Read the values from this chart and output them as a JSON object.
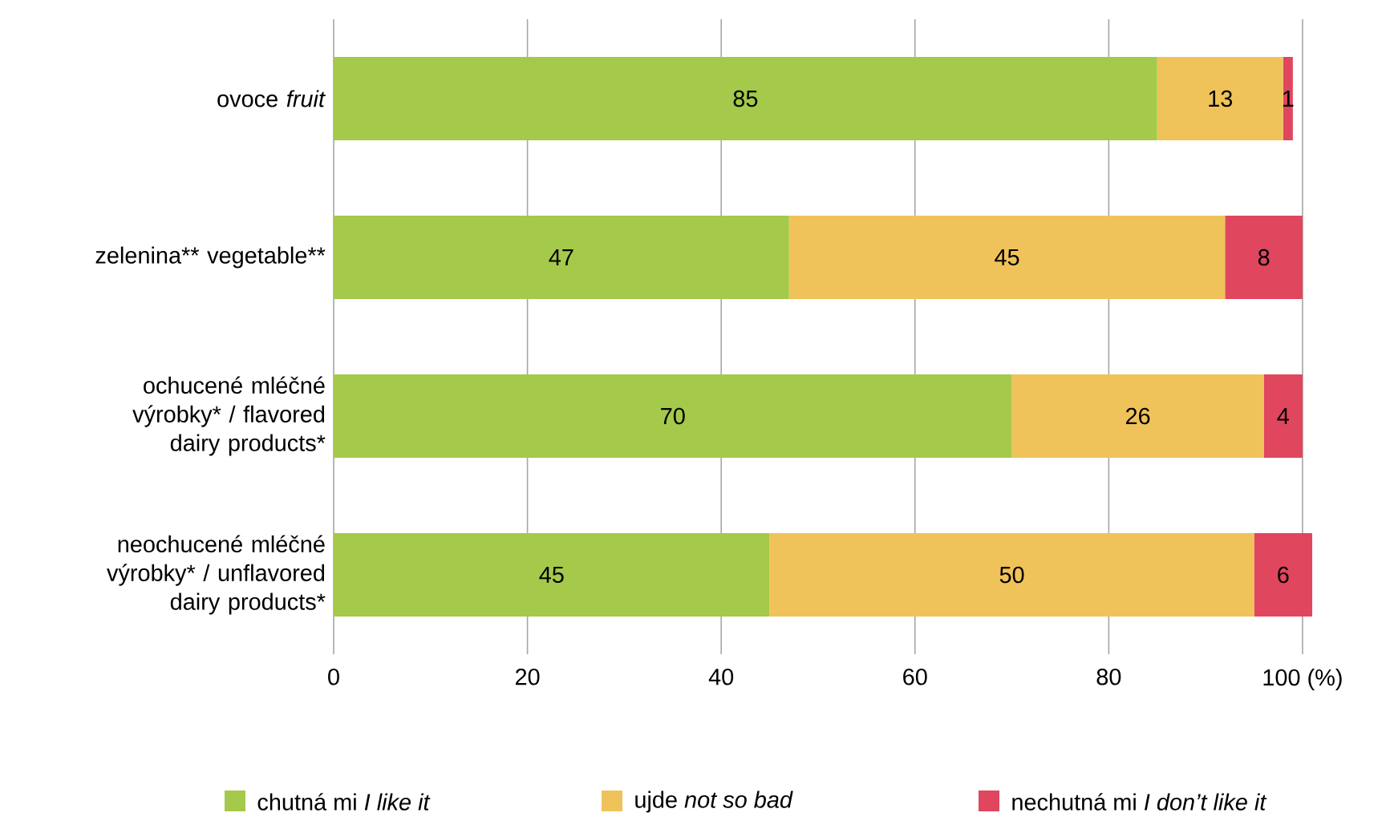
{
  "chart_data": {
    "type": "bar",
    "orientation": "horizontal",
    "stacked": true,
    "data_labels": true,
    "grid": "x",
    "legend": "bottom",
    "categories": [
      "ovoce *fruit*",
      "zelenina** vegetable**",
      "ochucené mléčné výrobky* / flavored dairy products*",
      "neochucené mléčné výrobky* / unflavored dairy products*"
    ],
    "series": [
      {
        "name": "chutná mi *I like it*",
        "color": "#a5c94a",
        "values": [
          85,
          47,
          70,
          45
        ]
      },
      {
        "name": "ujde *not so bad*",
        "color": "#f0c25a",
        "values": [
          13,
          45,
          26,
          50
        ]
      },
      {
        "name": "nechutná mi *I don’t like it*",
        "color": "#e0465e",
        "values": [
          1,
          8,
          4,
          6
        ]
      }
    ],
    "xlim": [
      0,
      101
    ],
    "xticks": [
      0,
      20,
      40,
      60,
      80,
      {
        "value": 100,
        "label": "100 (%)"
      }
    ]
  }
}
